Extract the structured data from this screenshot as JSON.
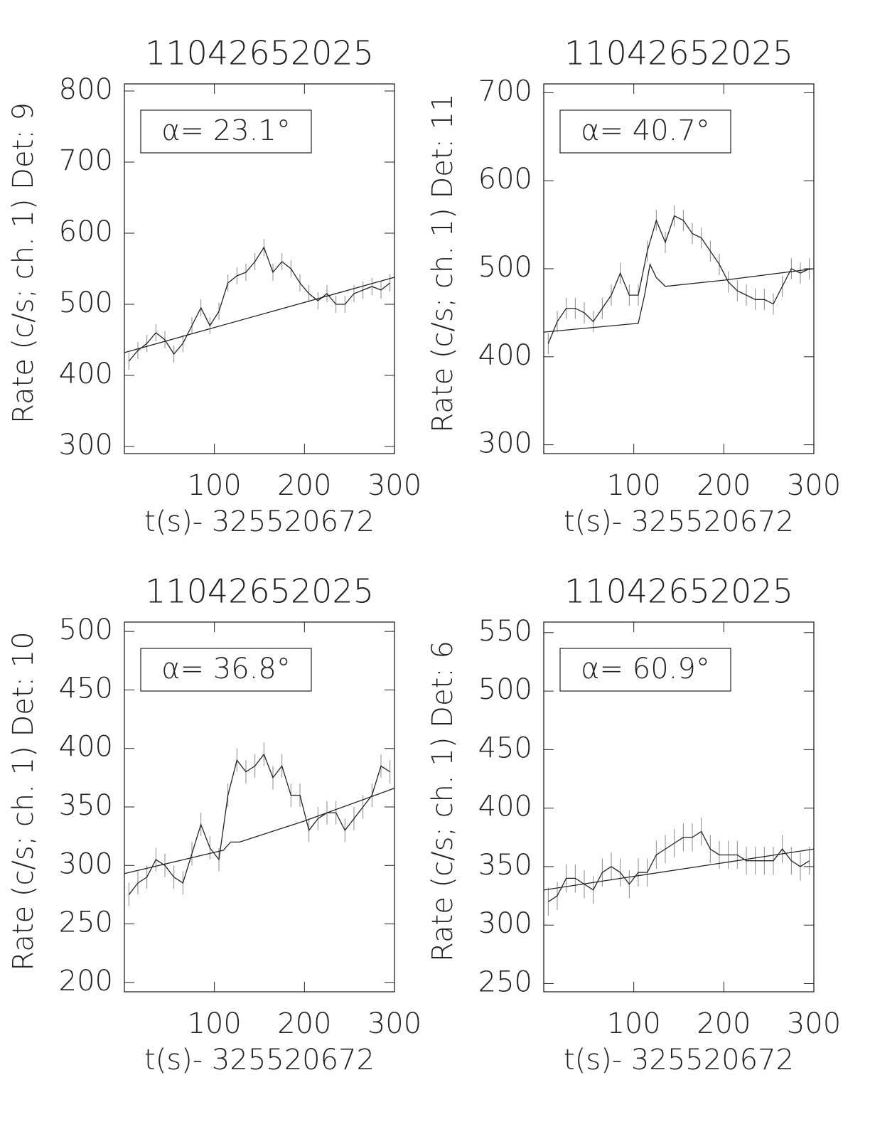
{
  "chart_data": [
    {
      "type": "line",
      "title": "11042652025",
      "annotation": "α= 23.1°",
      "xlabel": "t(s)- 325520672",
      "ylabel": "Rate (c/s; ch. 1) Det: 9",
      "xlim": [
        0,
        300
      ],
      "xticks": [
        100,
        200,
        300
      ],
      "ylim": [
        290,
        810
      ],
      "yticks": [
        300,
        400,
        500,
        600,
        700,
        800
      ],
      "x": [
        5,
        15,
        25,
        35,
        45,
        55,
        65,
        75,
        85,
        95,
        105,
        115,
        125,
        135,
        145,
        155,
        165,
        175,
        185,
        195,
        205,
        215,
        225,
        235,
        245,
        255,
        265,
        275,
        285,
        295
      ],
      "values": [
        420,
        435,
        445,
        460,
        450,
        430,
        445,
        470,
        495,
        470,
        490,
        530,
        540,
        545,
        560,
        580,
        545,
        560,
        550,
        530,
        515,
        505,
        515,
        500,
        500,
        515,
        520,
        525,
        520,
        530
      ],
      "error": 12,
      "model_x": [
        0,
        300
      ],
      "model_values": [
        432,
        538
      ]
    },
    {
      "type": "line",
      "title": "11042652025",
      "annotation": "α= 40.7°",
      "xlabel": "t(s)- 325520672",
      "ylabel": "Rate (c/s; ch. 1) Det: 11",
      "xlim": [
        0,
        300
      ],
      "xticks": [
        100,
        200,
        300
      ],
      "ylim": [
        290,
        710
      ],
      "yticks": [
        300,
        400,
        500,
        600,
        700
      ],
      "x": [
        5,
        15,
        25,
        35,
        45,
        55,
        65,
        75,
        85,
        95,
        105,
        115,
        125,
        135,
        145,
        155,
        165,
        175,
        185,
        195,
        205,
        215,
        225,
        235,
        245,
        255,
        265,
        275,
        285,
        295
      ],
      "values": [
        415,
        440,
        455,
        455,
        450,
        440,
        455,
        470,
        495,
        470,
        470,
        520,
        555,
        530,
        560,
        555,
        540,
        535,
        520,
        505,
        485,
        475,
        470,
        465,
        465,
        460,
        480,
        500,
        495,
        500
      ],
      "error": 12,
      "model_x": [
        0,
        105,
        112,
        118,
        125,
        135,
        200,
        300
      ],
      "model_values": [
        428,
        438,
        470,
        505,
        490,
        480,
        487,
        500
      ]
    },
    {
      "type": "line",
      "title": "11042652025",
      "annotation": "α= 36.8°",
      "xlabel": "t(s)- 325520672",
      "ylabel": "Rate (c/s; ch. 1) Det: 10",
      "xlim": [
        0,
        300
      ],
      "xticks": [
        100,
        200,
        300
      ],
      "ylim": [
        192,
        508
      ],
      "yticks": [
        200,
        250,
        300,
        350,
        400,
        450,
        500
      ],
      "x": [
        5,
        15,
        25,
        35,
        45,
        55,
        65,
        75,
        85,
        95,
        105,
        115,
        125,
        135,
        145,
        155,
        165,
        175,
        185,
        195,
        205,
        215,
        225,
        235,
        245,
        255,
        265,
        275,
        285,
        295
      ],
      "values": [
        275,
        285,
        290,
        305,
        300,
        290,
        285,
        310,
        335,
        315,
        305,
        360,
        390,
        380,
        385,
        395,
        375,
        385,
        360,
        360,
        330,
        340,
        345,
        345,
        330,
        340,
        350,
        360,
        385,
        380
      ],
      "error": 10,
      "model_x": [
        0,
        110,
        118,
        128,
        200,
        300
      ],
      "model_values": [
        293,
        313,
        320,
        320,
        338,
        366
      ]
    },
    {
      "type": "line",
      "title": "11042652025",
      "annotation": "α= 60.9°",
      "xlabel": "t(s)- 325520672",
      "ylabel": "Rate (c/s; ch. 1) Det: 6",
      "xlim": [
        0,
        300
      ],
      "xticks": [
        100,
        200,
        300
      ],
      "ylim": [
        243,
        559
      ],
      "yticks": [
        250,
        300,
        350,
        400,
        450,
        500,
        550
      ],
      "x": [
        5,
        15,
        25,
        35,
        45,
        55,
        65,
        75,
        85,
        95,
        105,
        115,
        125,
        135,
        145,
        155,
        165,
        175,
        185,
        195,
        205,
        215,
        225,
        235,
        245,
        255,
        265,
        275,
        285,
        295
      ],
      "values": [
        320,
        325,
        340,
        340,
        335,
        330,
        345,
        350,
        345,
        335,
        345,
        345,
        360,
        365,
        370,
        375,
        375,
        380,
        365,
        360,
        360,
        360,
        355,
        355,
        355,
        355,
        365,
        355,
        350,
        355
      ],
      "error": 12,
      "model_x": [
        0,
        300
      ],
      "model_values": [
        330,
        365
      ]
    }
  ]
}
